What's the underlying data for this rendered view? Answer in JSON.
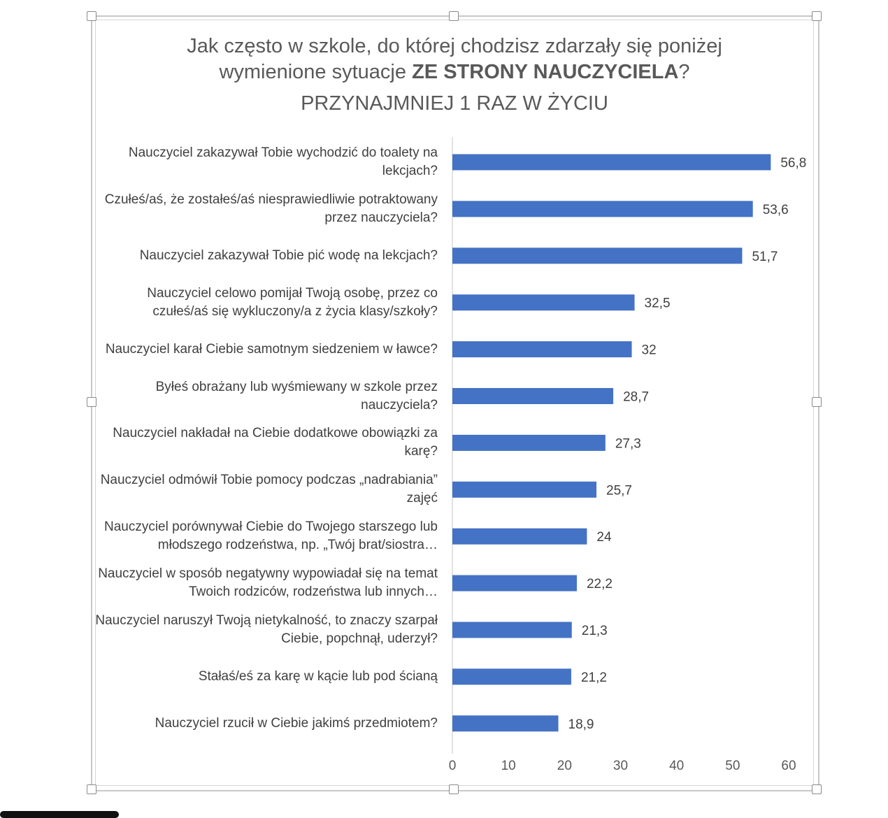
{
  "chart_data": {
    "type": "bar",
    "orientation": "horizontal",
    "title_line1": "Jak często w szkole, do której chodzisz zdarzały się poniżej",
    "title_line2_prefix": "wymienione sytuacje ",
    "title_line2_bold": "ZE STRONY NAUCZYCIELA",
    "title_line2_suffix": "?",
    "subtitle": "PRZYNAJMNIEJ 1 RAZ W ŻYCIU",
    "categories": [
      "Nauczyciel zakazywał Tobie wychodzić do toalety na lekcjach?",
      "Czułeś/aś, że zostałeś/aś niesprawiedliwie potraktowany przez nauczyciela?",
      "Nauczyciel zakazywał Tobie pić wodę na lekcjach?",
      "Nauczyciel celowo pomijał Twoją osobę, przez co czułeś/aś się wykluczony/a z życia klasy/szkoły?",
      "Nauczyciel karał Ciebie samotnym siedzeniem w ławce?",
      "Byłeś obrażany lub wyśmiewany w szkole przez nauczyciela?",
      "Nauczyciel nakładał na Ciebie dodatkowe obowiązki za karę?",
      "Nauczyciel odmówił Tobie pomocy podczas „nadrabiania” zajęć",
      "Nauczyciel porównywał Ciebie do Twojego starszego lub młodszego rodzeństwa, np. „Twój brat/siostra…",
      "Nauczyciel w sposób negatywny wypowiadał się na temat Twoich rodziców, rodzeństwa lub innych…",
      "Nauczyciel naruszył Twoją nietykalność, to znaczy szarpał Ciebie, popchnął, uderzył?",
      "Stałaś/eś za karę w kącie lub pod ścianą",
      "Nauczyciel rzucił w Ciebie jakimś przedmiotem?"
    ],
    "values": [
      56.8,
      53.6,
      51.7,
      32.5,
      32,
      28.7,
      27.3,
      25.7,
      24,
      22.2,
      21.3,
      21.2,
      18.9
    ],
    "value_labels": [
      "56,8",
      "53,6",
      "51,7",
      "32,5",
      "32",
      "28,7",
      "27,3",
      "25,7",
      "24",
      "22,2",
      "21,3",
      "21,2",
      "18,9"
    ],
    "xlim": [
      0,
      60
    ],
    "xticks": [
      "0",
      "10",
      "20",
      "30",
      "40",
      "50",
      "60"
    ],
    "xtick_values": [
      0,
      10,
      20,
      30,
      40,
      50,
      60
    ],
    "bar_color": "#4472C4",
    "grid": false
  }
}
